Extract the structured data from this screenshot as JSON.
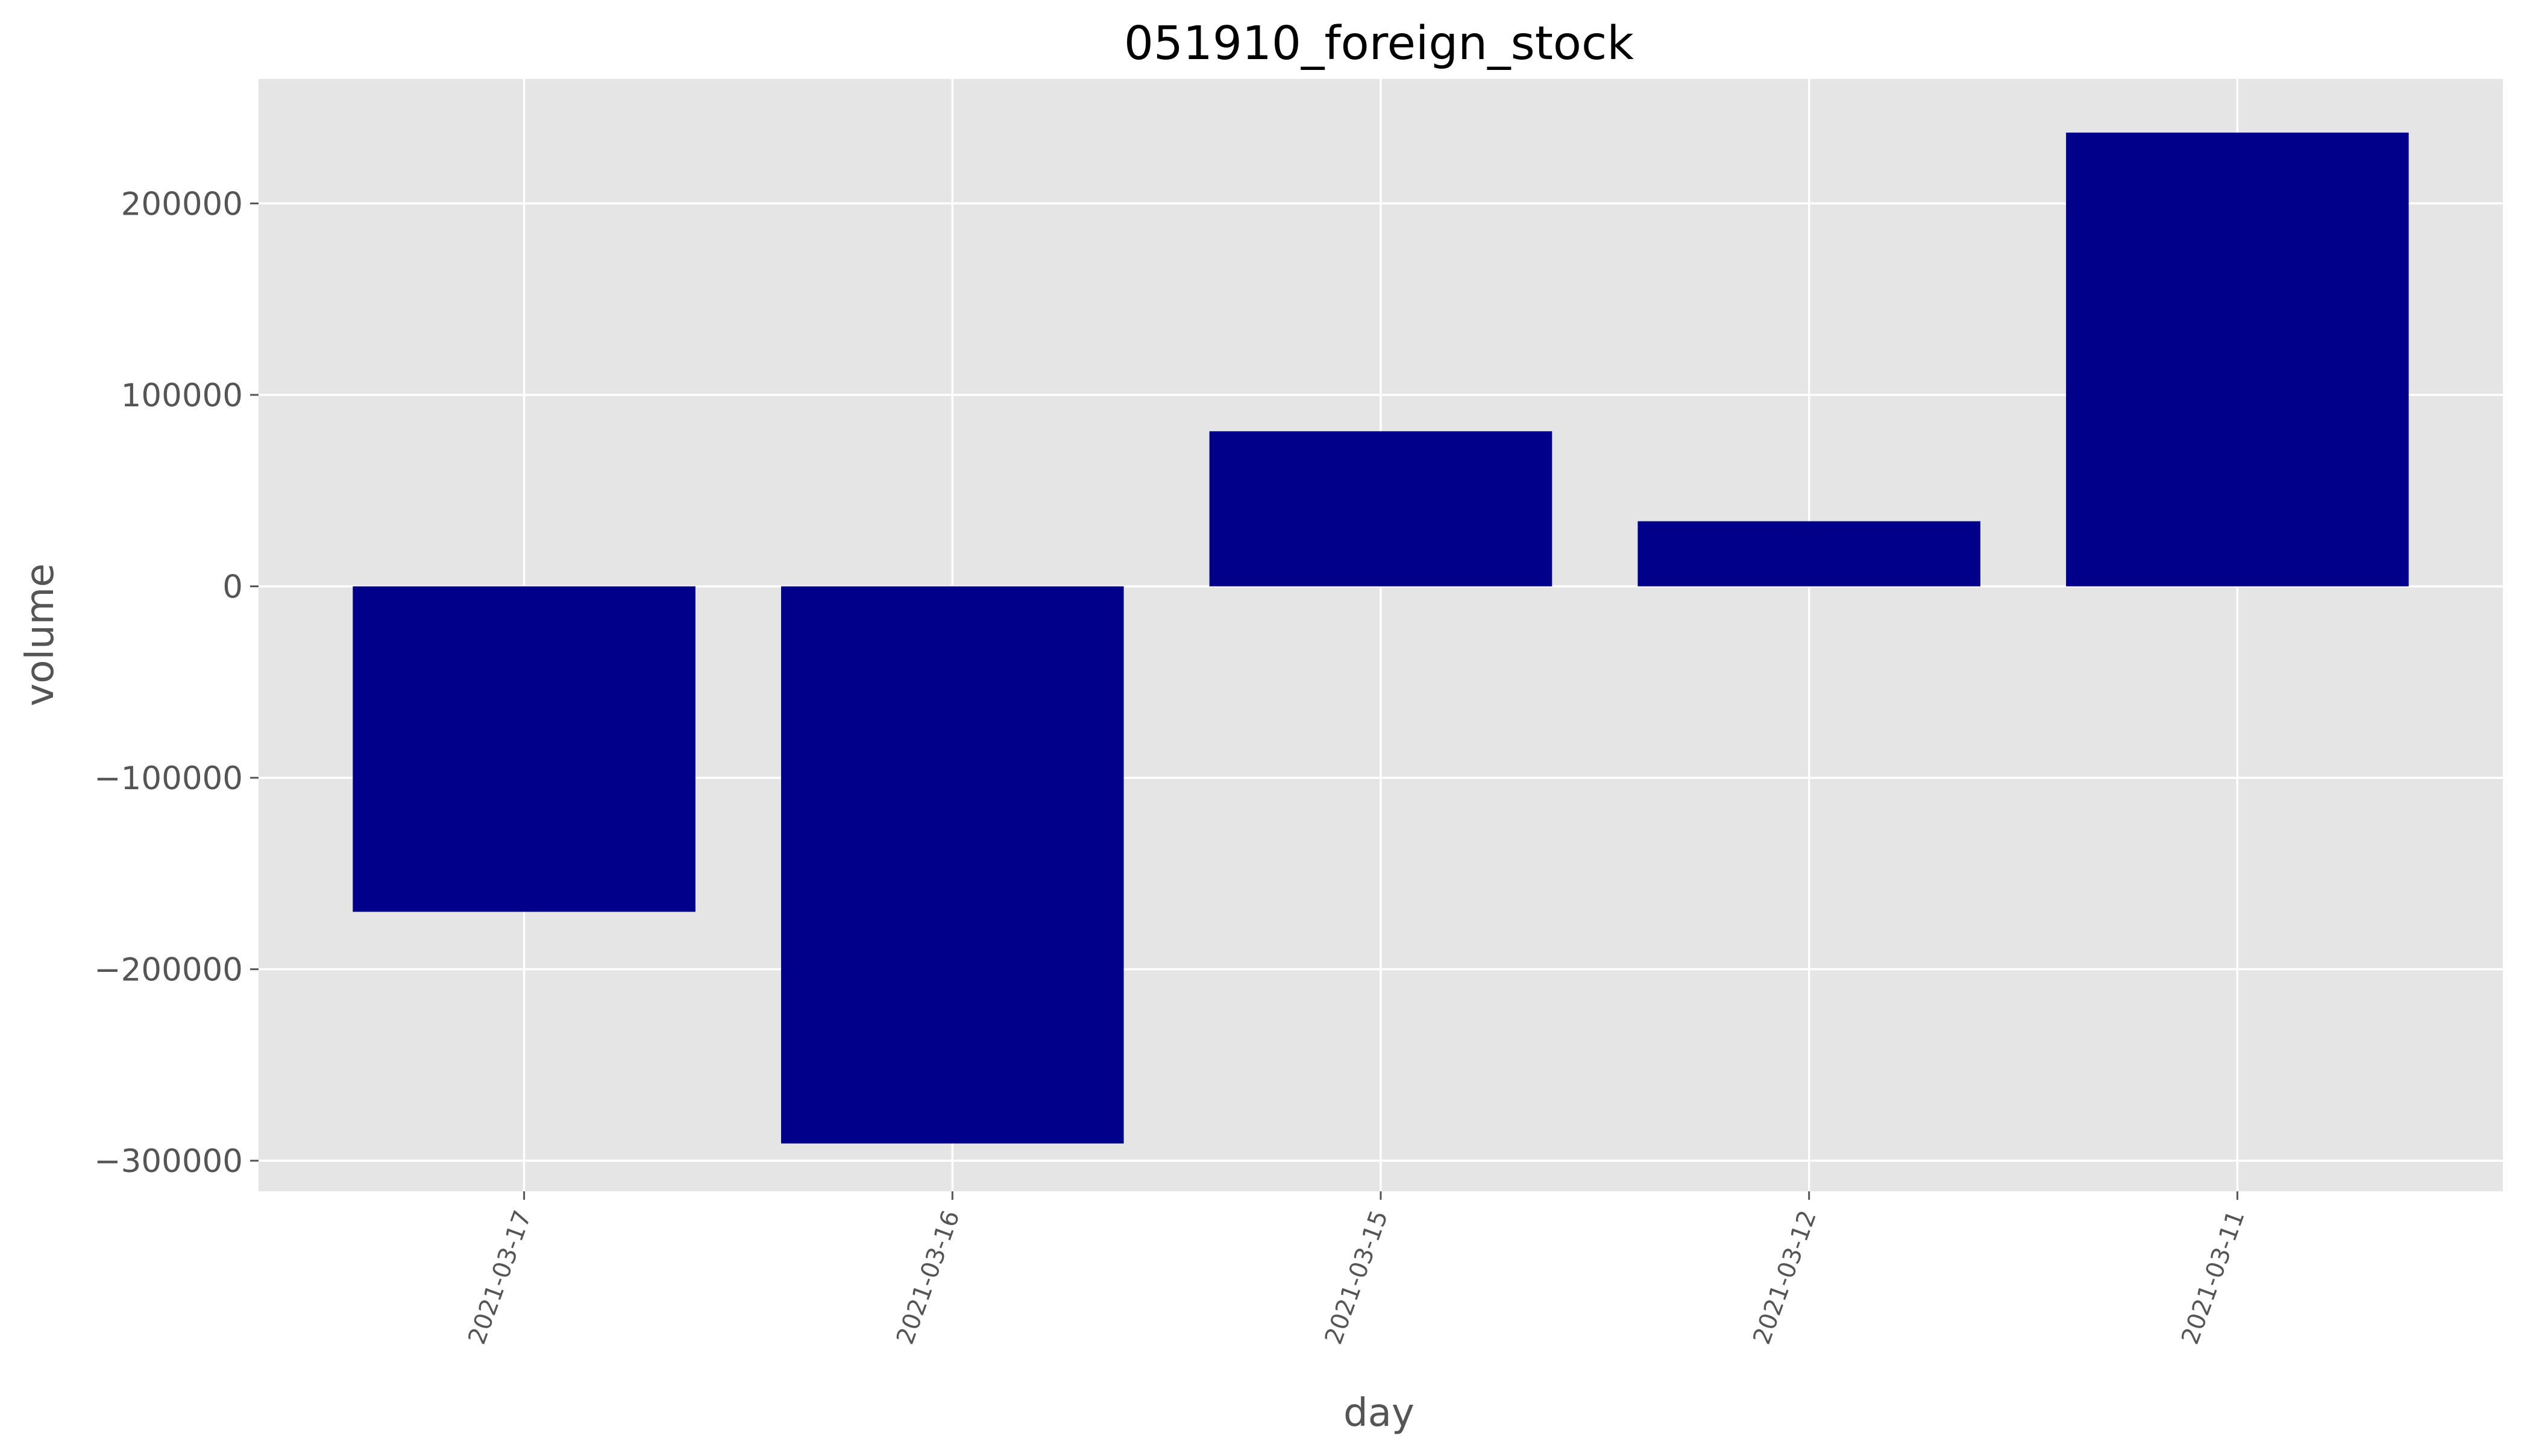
{
  "chart_data": {
    "type": "bar",
    "title": "051910_foreign_stock",
    "xlabel": "day",
    "ylabel": "volume",
    "categories": [
      "2021-03-17",
      "2021-03-16",
      "2021-03-15",
      "2021-03-12",
      "2021-03-11"
    ],
    "values": [
      -170000,
      -291000,
      81000,
      34000,
      237000
    ],
    "ylim": [
      -316000,
      265000
    ],
    "yticks": [
      200000,
      100000,
      0,
      -100000,
      -200000,
      -300000
    ],
    "ytick_labels": [
      "200000",
      "100000",
      "0",
      "−100000",
      "−200000",
      "−300000"
    ],
    "bar_color": "#00008b",
    "plot_background": "#e5e5e5",
    "grid": true,
    "legend": "none"
  }
}
